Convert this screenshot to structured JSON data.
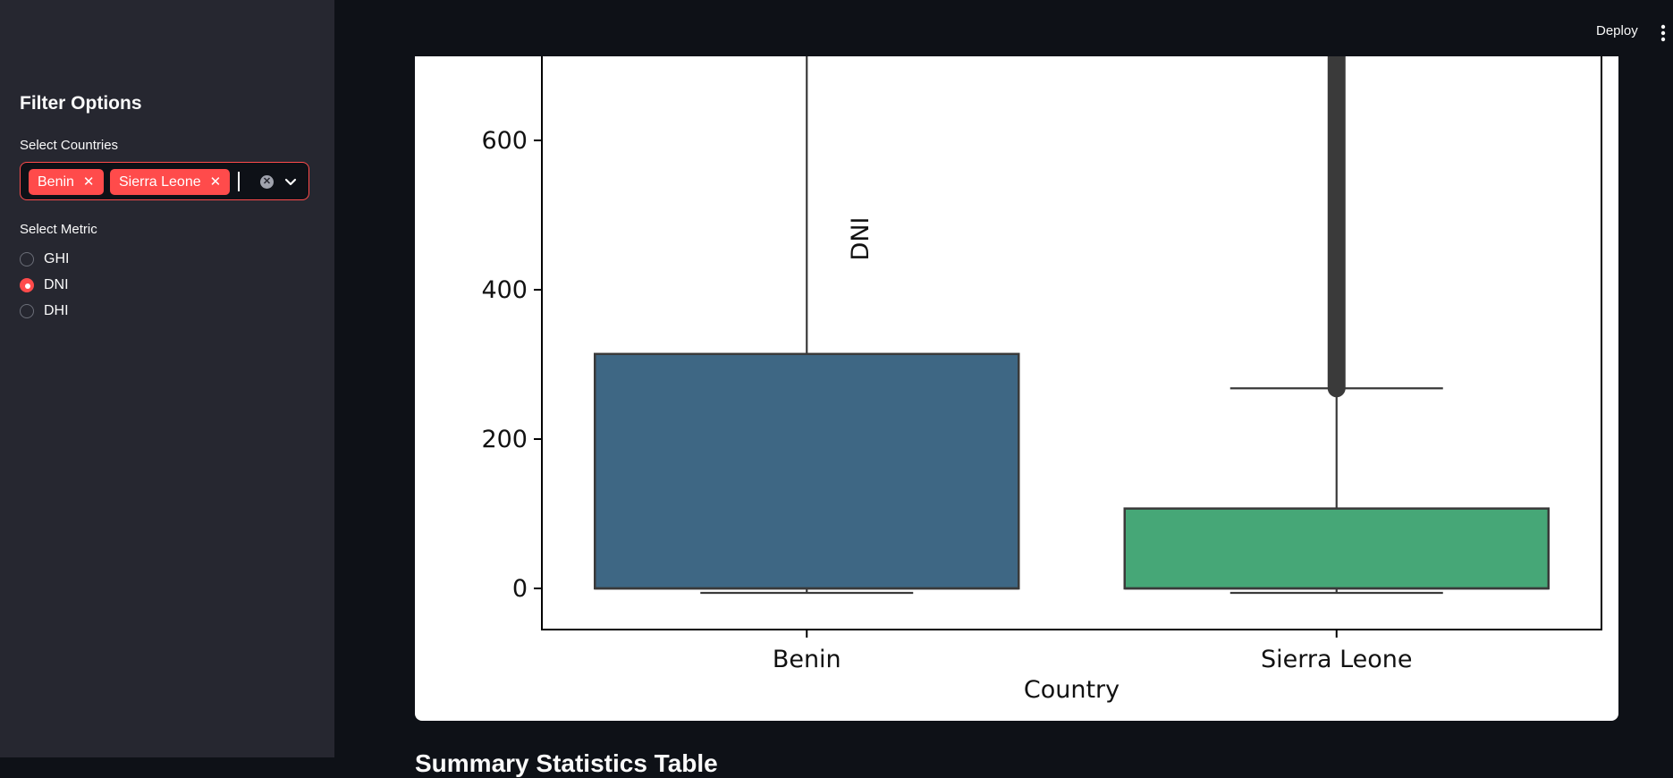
{
  "header": {
    "deploy_label": "Deploy",
    "menu_icon": "kebab-menu-icon"
  },
  "sidebar": {
    "title": "Filter Options",
    "countries_label": "Select Countries",
    "selected_countries": [
      "Benin",
      "Sierra Leone"
    ],
    "metric_label": "Select Metric",
    "metrics": [
      {
        "label": "GHI",
        "selected": false
      },
      {
        "label": "DNI",
        "selected": true
      },
      {
        "label": "DHI",
        "selected": false
      }
    ]
  },
  "colors": {
    "accent": "#ff4b4b",
    "benin_box": "#3e6784",
    "sierra_box": "#46a777"
  },
  "chart_data": {
    "type": "box",
    "xlabel": "Country",
    "ylabel": "DNI",
    "categories": [
      "Benin",
      "Sierra Leone"
    ],
    "yticks": [
      0,
      200,
      400,
      600
    ],
    "ylim": [
      -55,
      720
    ],
    "boxes": [
      {
        "name": "Benin",
        "whisker_low": -6,
        "q1": 0,
        "median": 0,
        "q3": 314,
        "whisker_high": 720,
        "color": "#3e6784"
      },
      {
        "name": "Sierra Leone",
        "whisker_low": -6,
        "q1": 0,
        "median": 0,
        "q3": 107,
        "whisker_high": 268,
        "outliers_from": 268,
        "outliers_to": 720,
        "color": "#46a777"
      }
    ]
  },
  "next_section": {
    "title": "Summary Statistics Table"
  }
}
